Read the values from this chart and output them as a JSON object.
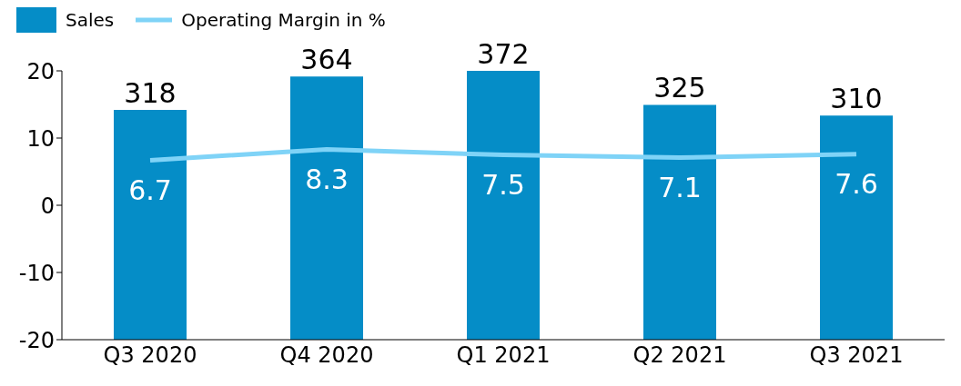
{
  "chart_data": {
    "type": "bar",
    "categories": [
      "Q3 2020",
      "Q4 2020",
      "Q1 2021",
      "Q2 2021",
      "Q3 2021"
    ],
    "series": [
      {
        "name": "Sales",
        "axis": "y2",
        "color": "#058dc7",
        "values": [
          318,
          364,
          372,
          325,
          310
        ]
      },
      {
        "name": "Operating Margin in %",
        "type": "line",
        "color": "#7fd3f7",
        "values": [
          6.7,
          8.3,
          7.5,
          7.1,
          7.6
        ]
      }
    ],
    "ylim": [
      -20,
      20
    ],
    "yticks": [
      -20,
      -10,
      0,
      10,
      20
    ],
    "data_labels": true,
    "grid": false,
    "legend": "top left",
    "tick_labels": "xy",
    "marker": "none"
  }
}
